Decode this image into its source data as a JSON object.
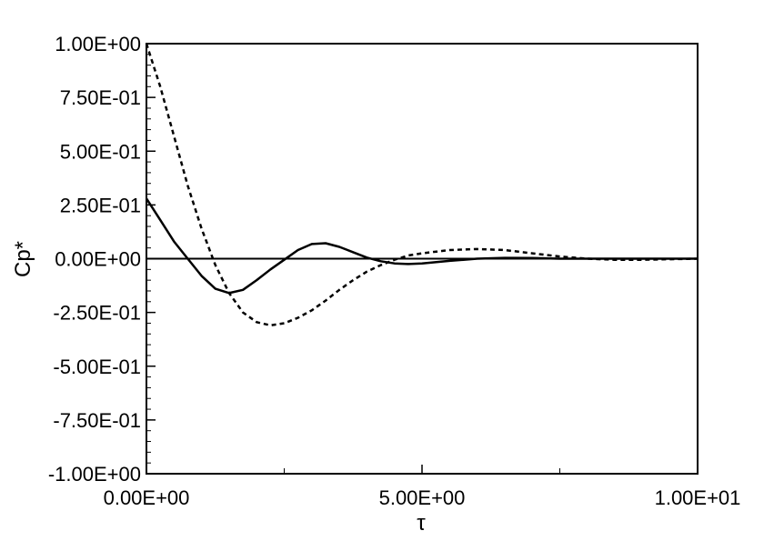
{
  "chart_data": {
    "type": "line",
    "title": "",
    "xlabel": "τ",
    "ylabel": "Cp*",
    "xlim": [
      0,
      10
    ],
    "ylim": [
      -1,
      1
    ],
    "grid": false,
    "legend": "none",
    "x_ticks": [
      {
        "value": 0,
        "label": "0.00E+00"
      },
      {
        "value": 5,
        "label": "5.00E+00"
      },
      {
        "value": 10,
        "label": "1.00E+01"
      }
    ],
    "y_ticks": [
      {
        "value": 1.0,
        "label": "1.00E+00"
      },
      {
        "value": 0.75,
        "label": "7.50E-01"
      },
      {
        "value": 0.5,
        "label": "5.00E-01"
      },
      {
        "value": 0.25,
        "label": "2.50E-01"
      },
      {
        "value": 0.0,
        "label": "0.00E+00"
      },
      {
        "value": -0.25,
        "label": "-2.50E-01"
      },
      {
        "value": -0.5,
        "label": "-5.00E-01"
      },
      {
        "value": -0.75,
        "label": "-7.50E-01"
      },
      {
        "value": -1.0,
        "label": "-1.00E+00"
      }
    ],
    "x_minor_ticks": [
      2.5,
      7.5
    ],
    "y_minor_step": 0.05,
    "series": [
      {
        "style": "solid",
        "color": "#000000",
        "x": [
          0.0,
          0.25,
          0.5,
          0.75,
          1.0,
          1.25,
          1.5,
          1.75,
          2.0,
          2.25,
          2.5,
          2.75,
          3.0,
          3.25,
          3.5,
          3.75,
          4.0,
          4.25,
          4.5,
          4.75,
          5.0,
          5.5,
          6.0,
          6.5,
          7.0,
          7.5,
          8.0,
          9.0,
          10.0
        ],
        "y": [
          0.28,
          0.18,
          0.08,
          0.0,
          -0.08,
          -0.14,
          -0.16,
          -0.145,
          -0.1,
          -0.05,
          -0.005,
          0.04,
          0.068,
          0.072,
          0.055,
          0.03,
          0.005,
          -0.012,
          -0.022,
          -0.025,
          -0.022,
          -0.01,
          0.0,
          0.004,
          0.003,
          0.0,
          0.0,
          0.0,
          0.0
        ]
      },
      {
        "style": "dashed",
        "color": "#000000",
        "x": [
          0.0,
          0.25,
          0.5,
          0.75,
          1.0,
          1.25,
          1.5,
          1.75,
          2.0,
          2.25,
          2.5,
          2.75,
          3.0,
          3.25,
          3.5,
          3.75,
          4.0,
          4.25,
          4.5,
          4.75,
          5.0,
          5.5,
          6.0,
          6.5,
          7.0,
          7.5,
          8.0,
          8.5,
          9.0,
          10.0
        ],
        "y": [
          1.0,
          0.8,
          0.57,
          0.34,
          0.14,
          -0.03,
          -0.16,
          -0.25,
          -0.295,
          -0.31,
          -0.3,
          -0.275,
          -0.24,
          -0.195,
          -0.145,
          -0.1,
          -0.06,
          -0.03,
          -0.005,
          0.015,
          0.025,
          0.04,
          0.045,
          0.04,
          0.025,
          0.01,
          0.0,
          -0.005,
          -0.005,
          0.0
        ]
      }
    ]
  }
}
